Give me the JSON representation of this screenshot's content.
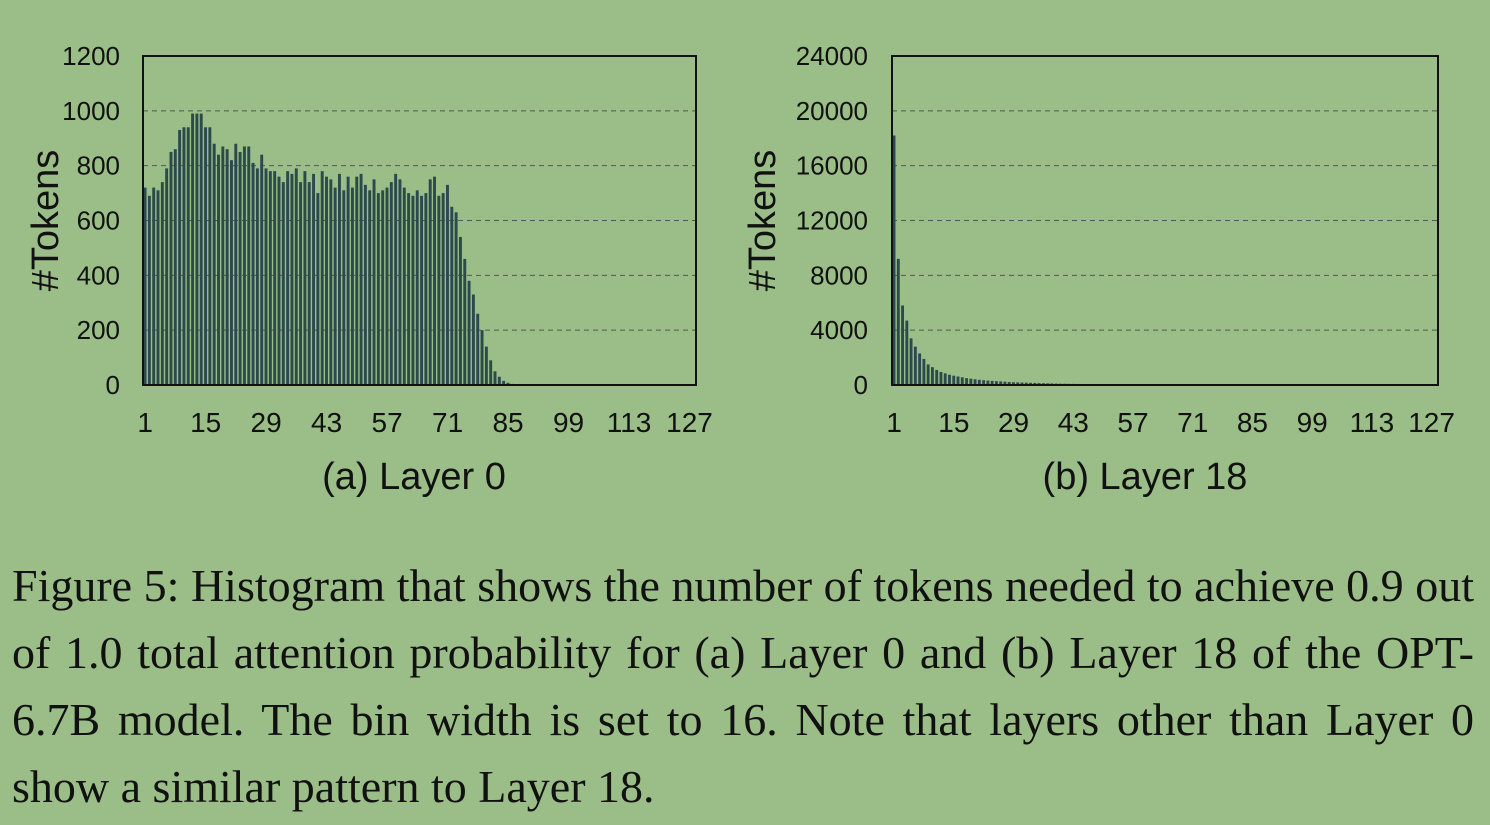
{
  "caption": "Figure 5: Histogram that shows the number of tokens needed to achieve 0.9 out of 1.0 total attention probability for (a) Layer 0 and (b) Layer 18 of the OPT-6.7B model. The bin width is set to 16. Note that layers other than Layer 0 show a similar pattern to Layer 18.",
  "colors": {
    "background": "#9bbd87",
    "bar": "#2b4a4c",
    "grid": "#555555",
    "axis": "#111111"
  },
  "chart_data": [
    {
      "type": "bar",
      "title": "(a) Layer 0",
      "xlabel": "",
      "ylabel": "#Tokens",
      "ylim": [
        0,
        1200
      ],
      "yticks": [
        0,
        200,
        400,
        600,
        800,
        1000,
        1200
      ],
      "xticks": [
        1,
        15,
        29,
        43,
        57,
        71,
        85,
        99,
        113,
        127
      ],
      "grid": "horizontal dashed",
      "x": [
        1,
        2,
        3,
        4,
        5,
        6,
        7,
        8,
        9,
        10,
        11,
        12,
        13,
        14,
        15,
        16,
        17,
        18,
        19,
        20,
        21,
        22,
        23,
        24,
        25,
        26,
        27,
        28,
        29,
        30,
        31,
        32,
        33,
        34,
        35,
        36,
        37,
        38,
        39,
        40,
        41,
        42,
        43,
        44,
        45,
        46,
        47,
        48,
        49,
        50,
        51,
        52,
        53,
        54,
        55,
        56,
        57,
        58,
        59,
        60,
        61,
        62,
        63,
        64,
        65,
        66,
        67,
        68,
        69,
        70,
        71,
        72,
        73,
        74,
        75,
        76,
        77,
        78,
        79,
        80,
        81,
        82,
        83,
        84,
        85,
        86,
        87,
        88,
        89,
        90,
        91,
        92,
        93,
        94,
        95,
        96,
        97,
        98,
        99,
        100,
        101,
        102,
        103,
        104,
        105,
        106,
        107,
        108,
        109,
        110,
        111,
        112,
        113,
        114,
        115,
        116,
        117,
        118,
        119,
        120,
        121,
        122,
        123,
        124,
        125,
        126,
        127,
        128
      ],
      "values": [
        720,
        690,
        720,
        710,
        740,
        790,
        850,
        860,
        930,
        940,
        940,
        990,
        990,
        990,
        940,
        940,
        880,
        840,
        870,
        860,
        820,
        880,
        850,
        870,
        870,
        810,
        790,
        840,
        790,
        780,
        780,
        760,
        740,
        780,
        770,
        790,
        740,
        780,
        740,
        770,
        700,
        780,
        760,
        750,
        720,
        770,
        710,
        760,
        720,
        760,
        770,
        730,
        710,
        750,
        700,
        710,
        720,
        740,
        770,
        750,
        720,
        700,
        690,
        710,
        690,
        700,
        750,
        760,
        690,
        700,
        730,
        650,
        630,
        540,
        460,
        380,
        330,
        260,
        200,
        140,
        90,
        50,
        30,
        15,
        8,
        4,
        2,
        1,
        0,
        0,
        0,
        0,
        0,
        0,
        0,
        0,
        0,
        0,
        0,
        0,
        0,
        0,
        0,
        0,
        0,
        0,
        0,
        0,
        0,
        0,
        0,
        0,
        0,
        0,
        0,
        0,
        0,
        0,
        0,
        0,
        0,
        0,
        0,
        0,
        0,
        0,
        0,
        0
      ]
    },
    {
      "type": "bar",
      "title": "(b) Layer 18",
      "xlabel": "",
      "ylabel": "#Tokens",
      "ylim": [
        0,
        24000
      ],
      "yticks": [
        0,
        4000,
        8000,
        12000,
        16000,
        20000,
        24000
      ],
      "xticks": [
        1,
        15,
        29,
        43,
        57,
        71,
        85,
        99,
        113,
        127
      ],
      "grid": "horizontal dashed",
      "x": [
        1,
        2,
        3,
        4,
        5,
        6,
        7,
        8,
        9,
        10,
        11,
        12,
        13,
        14,
        15,
        16,
        17,
        18,
        19,
        20,
        21,
        22,
        23,
        24,
        25,
        26,
        27,
        28,
        29,
        30,
        31,
        32,
        33,
        34,
        35,
        36,
        37,
        38,
        39,
        40,
        41,
        42,
        43,
        44,
        45,
        46,
        47,
        48,
        49,
        50,
        51,
        52,
        53,
        54,
        55,
        56,
        57,
        58,
        59,
        60,
        61,
        62,
        63,
        64,
        65,
        66,
        67,
        68,
        69,
        70,
        71,
        72,
        73,
        74,
        75,
        76,
        77,
        78,
        79,
        80,
        81,
        82,
        83,
        84,
        85,
        86,
        87,
        88,
        89,
        90,
        91,
        92,
        93,
        94,
        95,
        96,
        97,
        98,
        99,
        100,
        101,
        102,
        103,
        104,
        105,
        106,
        107,
        108,
        109,
        110,
        111,
        112,
        113,
        114,
        115,
        116,
        117,
        118,
        119,
        120,
        121,
        122,
        123,
        124,
        125,
        126,
        127,
        128
      ],
      "values": [
        18200,
        9200,
        5800,
        4700,
        3400,
        2800,
        2300,
        1900,
        1500,
        1300,
        1100,
        950,
        850,
        750,
        680,
        620,
        560,
        500,
        460,
        420,
        380,
        350,
        320,
        300,
        280,
        260,
        240,
        220,
        200,
        190,
        180,
        170,
        160,
        150,
        140,
        130,
        120,
        110,
        100,
        95,
        90,
        85,
        80,
        75,
        70,
        65,
        60,
        55,
        50,
        45,
        42,
        40,
        38,
        36,
        34,
        32,
        30,
        28,
        26,
        24,
        22,
        20,
        19,
        18,
        17,
        16,
        15,
        14,
        13,
        12,
        11,
        10,
        9,
        8,
        7,
        6,
        5,
        5,
        4,
        4,
        3,
        3,
        2,
        2,
        2,
        1,
        1,
        1,
        1,
        1,
        0,
        0,
        0,
        0,
        0,
        0,
        0,
        0,
        0,
        0,
        0,
        0,
        0,
        0,
        0,
        0,
        0,
        0,
        0,
        0,
        0,
        0,
        0,
        0,
        0,
        0,
        0,
        0,
        0,
        0,
        0,
        0,
        0,
        0,
        0,
        0,
        0,
        0
      ]
    }
  ]
}
